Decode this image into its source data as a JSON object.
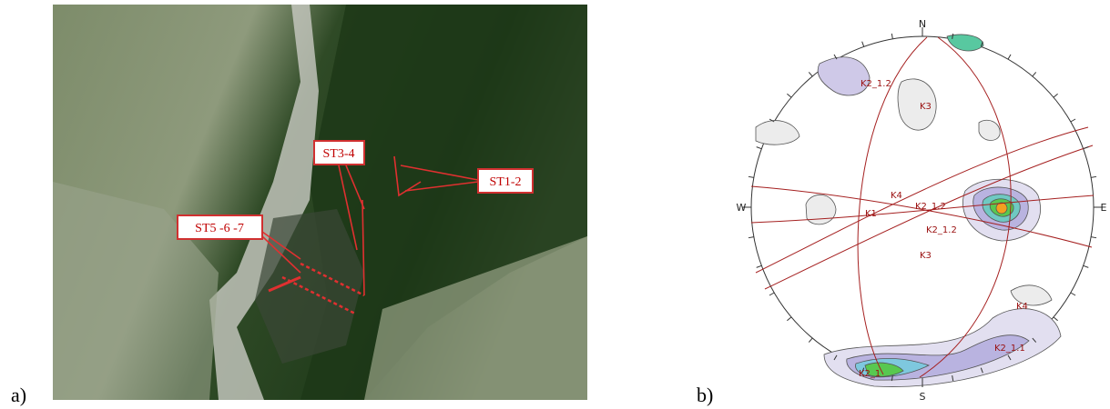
{
  "panels": [
    {
      "label": "a)",
      "annotations": [
        "ST3-4",
        "ST1-2",
        "ST5 -6 -7"
      ]
    },
    {
      "label": "b)",
      "directions": [
        "N",
        "E",
        "S",
        "W"
      ],
      "plane_labels": [
        "K2_1.2",
        "K3",
        "K4",
        "K1",
        "K2_1.2",
        "K2_1.2",
        "K3",
        "K4",
        "K2_1.1",
        "K2_1"
      ]
    }
  ]
}
